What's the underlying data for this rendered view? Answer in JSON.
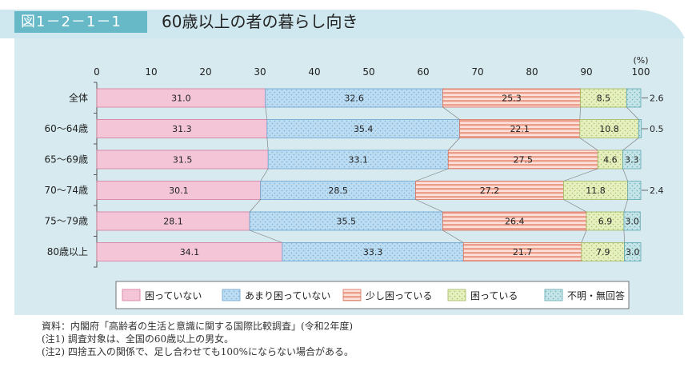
{
  "figure": {
    "number": "図1－2－1－1",
    "title": "60歳以上の者の暮らし向き"
  },
  "colors": {
    "header_band": "#cfe7ee",
    "header_box": "#67b9c8",
    "panel": "#d6eaf0",
    "series": [
      "#f3c5d6",
      "#bcdcf2",
      "#f0b3a3",
      "#e6efbe",
      "#c4e4e8"
    ]
  },
  "chart_data": {
    "type": "bar",
    "orientation": "horizontal",
    "stacked": true,
    "title": "",
    "xlabel": "",
    "unit_label": "(%)",
    "xlim": [
      0,
      100
    ],
    "x_ticks": [
      0,
      10,
      20,
      30,
      40,
      50,
      60,
      70,
      80,
      90,
      100
    ],
    "categories": [
      "全体",
      "60～64歳",
      "65～69歳",
      "70～74歳",
      "75～79歳",
      "80歳以上"
    ],
    "series": [
      {
        "name": "困っていない",
        "values": [
          31.0,
          31.3,
          31.5,
          30.1,
          28.1,
          34.1
        ]
      },
      {
        "name": "あまり困っていない",
        "values": [
          32.6,
          35.4,
          33.1,
          28.5,
          35.5,
          33.3
        ]
      },
      {
        "name": "少し困っている",
        "values": [
          25.3,
          22.1,
          27.5,
          27.2,
          26.4,
          21.7
        ]
      },
      {
        "name": "困っている",
        "values": [
          8.5,
          10.8,
          4.6,
          11.8,
          6.9,
          7.9
        ]
      },
      {
        "name": "不明・無回答",
        "values": [
          2.6,
          0.5,
          3.3,
          2.4,
          3.0,
          3.0
        ]
      }
    ],
    "legend_position": "bottom",
    "grid": false
  },
  "notes": [
    "資料：内閣府「高齢者の生活と意識に関する国際比較調査」(令和2年度)",
    "(注1) 調査対象は、全国の60歳以上の男女。",
    "(注2) 四捨五入の関係で、足し合わせても100%にならない場合がある。"
  ]
}
